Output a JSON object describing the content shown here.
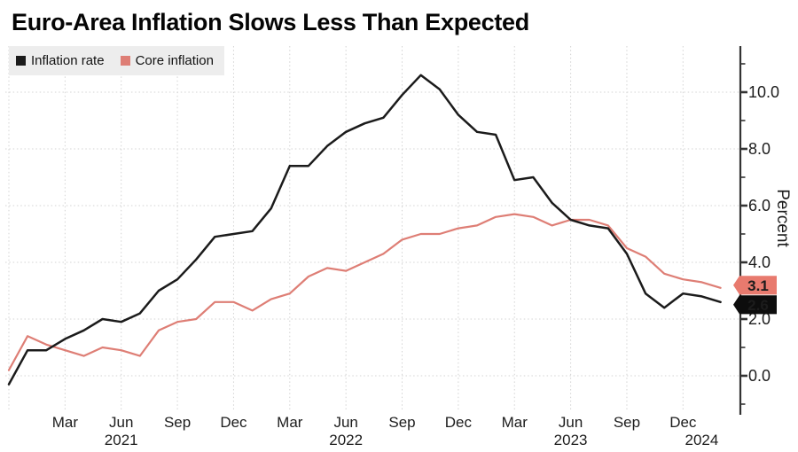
{
  "title": "Euro-Area Inflation Slows Less Than Expected",
  "legend": [
    {
      "label": "Inflation rate",
      "color": "#1b1b1b"
    },
    {
      "label": "Core inflation",
      "color": "#de7e75"
    }
  ],
  "chart_data": {
    "type": "line",
    "title": "Euro-Area Inflation Slows Less Than Expected",
    "ylabel": "Percent",
    "xlabel": "",
    "ylim": [
      -1.4,
      11.6
    ],
    "grid": "dotted",
    "legend_position": "top-left",
    "x_months": [
      "Dec 2020",
      "Jan 2021",
      "Feb 2021",
      "Mar 2021",
      "Apr 2021",
      "May 2021",
      "Jun 2021",
      "Jul 2021",
      "Aug 2021",
      "Sep 2021",
      "Oct 2021",
      "Nov 2021",
      "Dec 2021",
      "Jan 2022",
      "Feb 2022",
      "Mar 2022",
      "Apr 2022",
      "May 2022",
      "Jun 2022",
      "Jul 2022",
      "Aug 2022",
      "Sep 2022",
      "Oct 2022",
      "Nov 2022",
      "Dec 2022",
      "Jan 2023",
      "Feb 2023",
      "Mar 2023",
      "Apr 2023",
      "May 2023",
      "Jun 2023",
      "Jul 2023",
      "Aug 2023",
      "Sep 2023",
      "Oct 2023",
      "Nov 2023",
      "Dec 2023",
      "Jan 2024",
      "Feb 2024"
    ],
    "series": [
      {
        "name": "Inflation rate",
        "color": "#1b1b1b",
        "values": [
          -0.3,
          0.9,
          0.9,
          1.3,
          1.6,
          2.0,
          1.9,
          2.2,
          3.0,
          3.4,
          4.1,
          4.9,
          5.0,
          5.1,
          5.9,
          7.4,
          7.4,
          8.1,
          8.6,
          8.9,
          9.1,
          9.9,
          10.6,
          10.1,
          9.2,
          8.6,
          8.5,
          6.9,
          7.0,
          6.1,
          5.5,
          5.3,
          5.2,
          4.3,
          2.9,
          2.4,
          2.9,
          2.8,
          2.6
        ],
        "end_label": "2.6",
        "end_label_bg": "#0d0d0d",
        "end_label_text_color": "#ffffff"
      },
      {
        "name": "Core inflation",
        "color": "#de7e75",
        "values": [
          0.2,
          1.4,
          1.1,
          0.9,
          0.7,
          1.0,
          0.9,
          0.7,
          1.6,
          1.9,
          2.0,
          2.6,
          2.6,
          2.3,
          2.7,
          2.9,
          3.5,
          3.8,
          3.7,
          4.0,
          4.3,
          4.8,
          5.0,
          5.0,
          5.2,
          5.3,
          5.6,
          5.7,
          5.6,
          5.3,
          5.5,
          5.5,
          5.3,
          4.5,
          4.2,
          3.6,
          3.4,
          3.3,
          3.1
        ],
        "end_label": "3.1",
        "end_label_bg": "#e87a6e",
        "end_label_text_color": "#141414"
      }
    ],
    "y_major_ticks": [
      {
        "value": 0,
        "label": "0.0"
      },
      {
        "value": 2,
        "label": "2.0"
      },
      {
        "value": 4,
        "label": "4.0"
      },
      {
        "value": 6,
        "label": "6.0"
      },
      {
        "value": 8,
        "label": "8.0"
      },
      {
        "value": 10,
        "label": "10.0"
      }
    ],
    "y_minor_ticks": [
      -1,
      1,
      3,
      5,
      7,
      9,
      11
    ],
    "x_ticks": [
      {
        "month_index": 3,
        "label": "Mar"
      },
      {
        "month_index": 6,
        "label": "Jun",
        "year": "2021"
      },
      {
        "month_index": 9,
        "label": "Sep"
      },
      {
        "month_index": 12,
        "label": "Dec"
      },
      {
        "month_index": 15,
        "label": "Mar"
      },
      {
        "month_index": 18,
        "label": "Jun",
        "year": "2022"
      },
      {
        "month_index": 21,
        "label": "Sep"
      },
      {
        "month_index": 24,
        "label": "Dec"
      },
      {
        "month_index": 27,
        "label": "Mar"
      },
      {
        "month_index": 30,
        "label": "Jun",
        "year": "2023"
      },
      {
        "month_index": 33,
        "label": "Sep"
      },
      {
        "month_index": 36,
        "label": "Dec"
      },
      {
        "month_index": 37,
        "label": "",
        "year": "2024"
      }
    ],
    "x_gridline_month_indices": [
      0,
      3,
      6,
      9,
      12,
      15,
      18,
      21,
      24,
      27,
      30,
      33,
      36
    ]
  },
  "colors": {
    "grid": "#d3d3d3",
    "axis": "#333333",
    "legend_bg": "#ededed",
    "tick_label": "#1c1c1c"
  }
}
